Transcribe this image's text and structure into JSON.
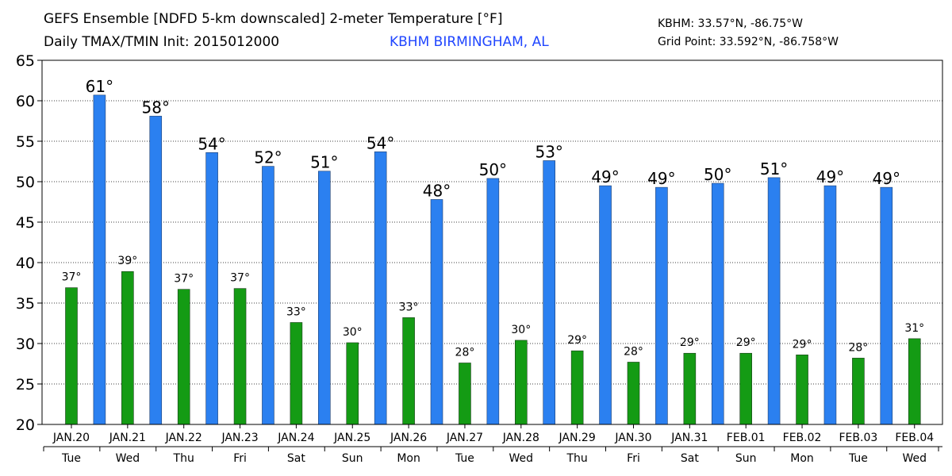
{
  "header": {
    "title_line1": "GEFS Ensemble [NDFD 5-km downscaled] 2-meter Temperature [°F]",
    "title_line2": "Daily TMAX/TMIN Init: 2015012000",
    "station": "KBHM BIRMINGHAM, AL",
    "station_coords": "KBHM: 33.57°N, -86.75°W",
    "grid_point": "Grid Point: 33.592°N, -86.758°W"
  },
  "chart_data": {
    "type": "bar",
    "categories": [
      "JAN.20",
      "JAN.21",
      "JAN.22",
      "JAN.23",
      "JAN.24",
      "JAN.25",
      "JAN.26",
      "JAN.27",
      "JAN.28",
      "JAN.29",
      "JAN.30",
      "JAN.31",
      "FEB.01",
      "FEB.02",
      "FEB.03",
      "FEB.04"
    ],
    "weekdays": [
      "Tue",
      "Wed",
      "Thu",
      "Fri",
      "Sat",
      "Sun",
      "Mon",
      "Tue",
      "Wed",
      "Thu",
      "Fri",
      "Sat",
      "Sun",
      "Mon",
      "Tue",
      "Wed"
    ],
    "tmin": {
      "values": [
        36.9,
        38.9,
        36.7,
        36.8,
        32.6,
        30.1,
        33.2,
        27.6,
        30.4,
        29.1,
        27.7,
        28.8,
        28.8,
        28.6,
        28.2,
        30.6
      ],
      "labels": [
        "37°",
        "39°",
        "37°",
        "37°",
        "33°",
        "30°",
        "33°",
        "28°",
        "30°",
        "29°",
        "28°",
        "29°",
        "29°",
        "29°",
        "28°",
        "31°"
      ],
      "color": "#149b14"
    },
    "tmax": {
      "values": [
        60.7,
        58.1,
        53.6,
        51.9,
        51.3,
        53.7,
        47.8,
        50.4,
        52.6,
        49.5,
        49.3,
        49.8,
        50.5,
        49.5,
        49.3
      ],
      "labels": [
        "61°",
        "58°",
        "54°",
        "52°",
        "51°",
        "54°",
        "48°",
        "50°",
        "53°",
        "49°",
        "49°",
        "50°",
        "51°",
        "49°",
        "49°"
      ],
      "color": "#2b80f0"
    },
    "ylim": [
      20,
      65
    ],
    "yticks": [
      "20",
      "25",
      "30",
      "35",
      "40",
      "45",
      "50",
      "55",
      "60",
      "65"
    ],
    "grid": true
  }
}
